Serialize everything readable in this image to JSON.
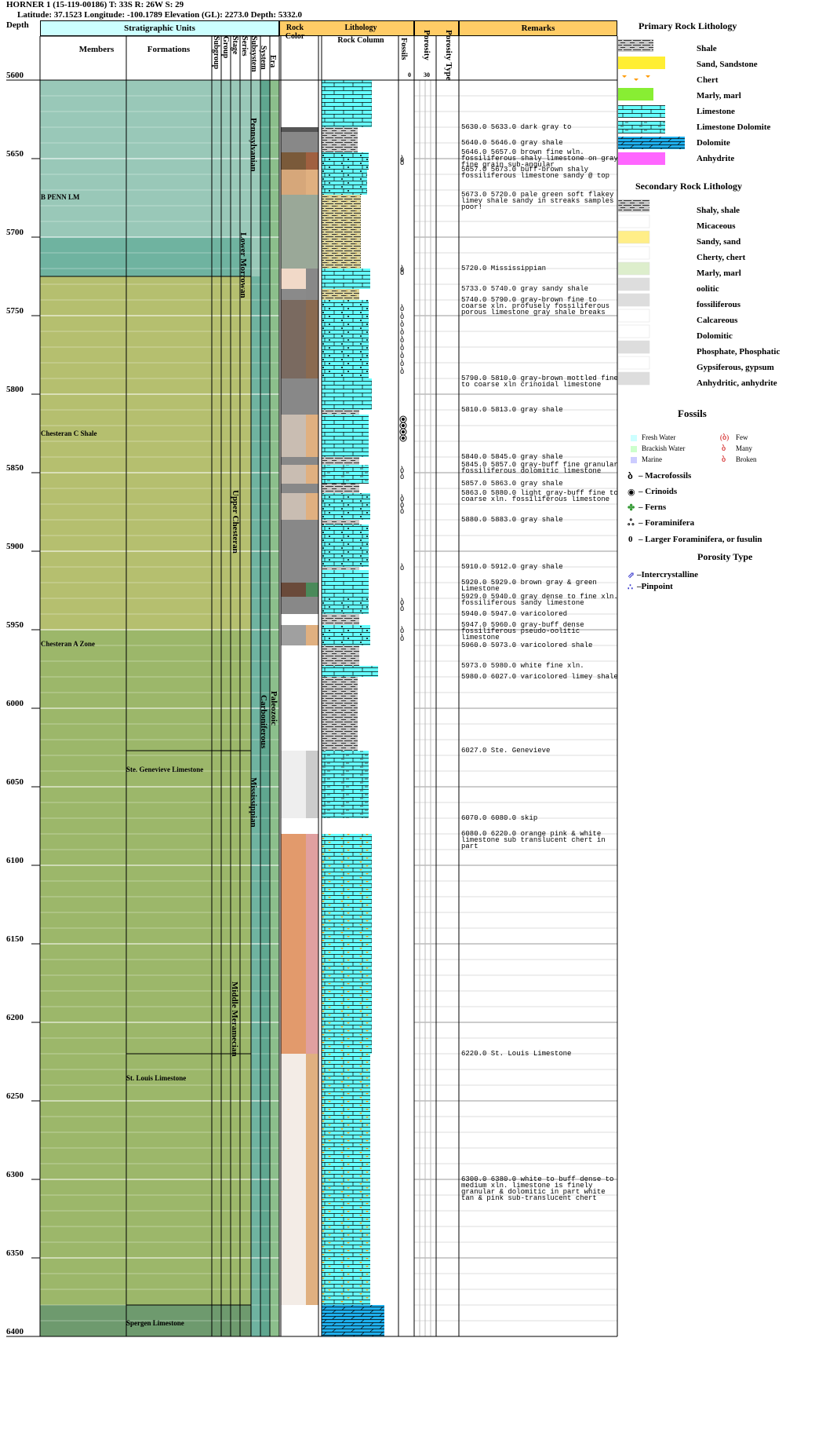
{
  "header": {
    "title": "HORNER 1 (15-119-00186) T: 33S R: 26W S: 29",
    "subtitle": "Latitude: 37.1523 Longitude: -100.1789 Elevation (GL): 2273.0 Depth: 5332.0"
  },
  "columns": {
    "depth": "Depth",
    "strat": "Stratigraphic Units",
    "members": "Members",
    "formations": "Formations",
    "subgroup": "Subgroup",
    "group": "Group",
    "stage": "Stage",
    "series": "Series",
    "subsystem": "Subsystem",
    "system": "System",
    "era": "Era",
    "rock_color": "Rock Color",
    "lithology": "Lithology",
    "rock_column": "Rock Column",
    "fossils": "Fossils",
    "porosity": "Porosity",
    "porosity_type": "Porosity Type",
    "remarks": "Remarks",
    "porosity_scale_min": "0",
    "porosity_scale_max": "30"
  },
  "depth_ticks": [
    "5600",
    "5650",
    "5700",
    "5750",
    "5800",
    "5850",
    "5900",
    "5950",
    "6000",
    "6050",
    "6100",
    "6150",
    "6200",
    "6250",
    "6300",
    "6350",
    "6400"
  ],
  "strat_labels": {
    "members": [
      "B PENN LM",
      "Chesteran C Shale",
      "Chesteran A Zone"
    ],
    "formations": [
      "Ste. Genevieve Limestone",
      "St. Louis Limestone",
      "Spergen Limestone"
    ],
    "series": [
      "Lower Morrowan",
      "Upper Chesteran",
      "Middle Meramecian"
    ],
    "subsystem": [
      "Pennsylvanian",
      "Mississippian"
    ],
    "system": "Carboniferous",
    "era": "Paleozoic"
  },
  "remarks": [
    {
      "depth": 5630,
      "text": "5630.0 5633.0 dark gray to"
    },
    {
      "depth": 5640,
      "text": "5640.0 5646.0 gray shale"
    },
    {
      "depth": 5646,
      "text": "5646.0 5657.0 brown fine wln. fossiliferous shaly limestone on gray fine grain sub-angular"
    },
    {
      "depth": 5657,
      "text": "5657.0 5673.0 buff-brown shaly fossiliferous limestone sandy @ top"
    },
    {
      "depth": 5673,
      "text": "5673.0 5720.0 pale green soft flakey limey shale sandy in streaks samples poor!"
    },
    {
      "depth": 5720,
      "text": "5720.0 Mississippian"
    },
    {
      "depth": 5733,
      "text": "5733.0 5740.0 gray sandy shale"
    },
    {
      "depth": 5740,
      "text": "5740.0 5790.0 gray-brown fine to coarse xln. profusely fossiliferous porous limestone gray shale breaks"
    },
    {
      "depth": 5790,
      "text": "5790.0 5810.0 gray-brown mottled fine to coarse xln crinoidal limestone"
    },
    {
      "depth": 5810,
      "text": "5810.0 5813.0 gray shale"
    },
    {
      "depth": 5840,
      "text": "5840.0 5845.0 gray shale"
    },
    {
      "depth": 5845,
      "text": "5845.0 5857.0 gray-buff fine granular fossiliferous dolomitic limestone"
    },
    {
      "depth": 5857,
      "text": "5857.0 5863.0 gray shale"
    },
    {
      "depth": 5863,
      "text": "5863.0 5880.0 light gray-buff fine to coarse xln. fossiliferous limestone"
    },
    {
      "depth": 5880,
      "text": "5880.0 5883.0 gray shale"
    },
    {
      "depth": 5910,
      "text": "5910.0 5912.0 gray shale"
    },
    {
      "depth": 5920,
      "text": "5920.0 5929.0 brown gray & green Limestone"
    },
    {
      "depth": 5929,
      "text": "5929.0 5940.0 gray dense to fine xln. fossiliferous sandy limestone"
    },
    {
      "depth": 5940,
      "text": "5940.0 5947.0 varicolored"
    },
    {
      "depth": 5947,
      "text": "5947.0 5960.0 gray-buff dense fossiliferous pseudo-oolitic limestone"
    },
    {
      "depth": 5960,
      "text": "5960.0 5973.0 varicolored shale"
    },
    {
      "depth": 5973,
      "text": "5973.0 5980.0 white fine xln."
    },
    {
      "depth": 5980,
      "text": "5980.0 6027.0 varicolored limey shale"
    },
    {
      "depth": 6027,
      "text": "6027.0 Ste. Genevieve"
    },
    {
      "depth": 6070,
      "text": "6070.0 6080.0 skip"
    },
    {
      "depth": 6080,
      "text": "6080.0 6220.0 orange pink & white limestone sub translucent chert in part"
    },
    {
      "depth": 6220,
      "text": "6220.0 St. Louis Limestone"
    },
    {
      "depth": 6300,
      "text": "6300.0 6380.0 white to buff dense to medium xln. limestone is finely granular & dolomitic in part white tan & pink sub-translucent chert"
    }
  ],
  "legend": {
    "primary_title": "Primary Rock Lithology",
    "primary": [
      {
        "label": "Shale",
        "icon": "shale-swatch"
      },
      {
        "label": "Sand, Sandstone",
        "icon": "sand-swatch"
      },
      {
        "label": "Chert",
        "icon": "chert-swatch"
      },
      {
        "label": "Marly, marl",
        "icon": "marl-swatch"
      },
      {
        "label": "Limestone",
        "icon": "limestone-swatch"
      },
      {
        "label": "Limestone Dolomite",
        "icon": "limestone-dolomite-swatch"
      },
      {
        "label": "Dolomite",
        "icon": "dolomite-swatch"
      },
      {
        "label": "Anhydrite",
        "icon": "anhydrite-swatch"
      }
    ],
    "secondary_title": "Secondary Rock Lithology",
    "secondary": [
      {
        "label": "Shaly, shale"
      },
      {
        "label": "Micaceous"
      },
      {
        "label": "Sandy, sand"
      },
      {
        "label": "Cherty, chert"
      },
      {
        "label": "Marly, marl"
      },
      {
        "label": "oolitic"
      },
      {
        "label": "fossiliferous"
      },
      {
        "label": "Calcareous"
      },
      {
        "label": "Dolomitic"
      },
      {
        "label": "Phosphate, Phosphatic"
      },
      {
        "label": "Gypsiferous, gypsum"
      },
      {
        "label": "Anhydritic, anhydrite"
      }
    ],
    "fossils_title": "Fossils",
    "water": [
      "Fresh Water",
      "Brackish Water",
      "Marine"
    ],
    "abundance": [
      "Few",
      "Many",
      "Broken"
    ],
    "fossil_types": [
      "– Macrofossils",
      "– Crinoids",
      "– Ferns",
      "– Foraminifera",
      "– Larger Foraminifera, or fusulin"
    ],
    "porosity_title": "Porosity Type",
    "porosity_types": [
      "–Intercrystalline",
      "–Pinpoint"
    ]
  },
  "colors": {
    "header_cyan": "#ccffff",
    "header_orange": "#ffcc66",
    "limestone": "#66ffff",
    "dolomite": "#1fb0ee",
    "penn_green": "#99c8b8",
    "morrow_teal": "#6fb3a0",
    "chester_olive": "#b5bf6f",
    "meramec_green": "#9cb76a",
    "spergen_green": "#6e9a6e"
  }
}
